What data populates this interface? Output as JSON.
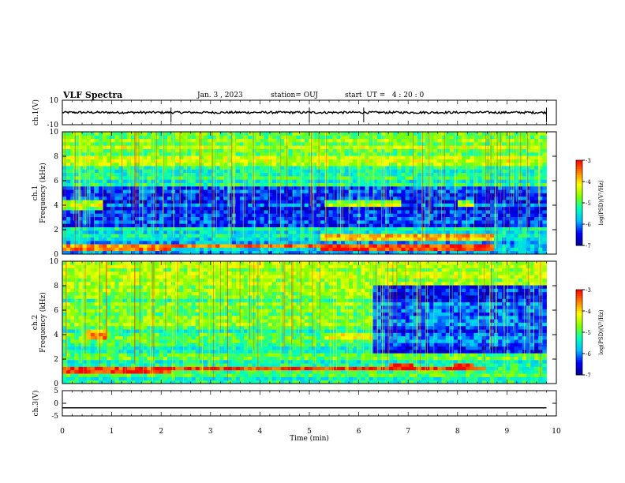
{
  "header": {
    "title": "VLF Spectra",
    "date": "Jan. 3 , 2023",
    "station": "station= OUJ",
    "start": "start  UT =   4 : 20 : 0"
  },
  "colors": {
    "trace": "#000000",
    "colormap": [
      "#00008f",
      "#0000ff",
      "#00bfff",
      "#00ffbf",
      "#7fff00",
      "#ffff00",
      "#ff8000",
      "#ff0000",
      "#ffffff"
    ]
  },
  "chart_data": [
    {
      "type": "line",
      "panel": "ch1-waveform",
      "ylabel": "ch.1(V)",
      "ylim": [
        -10,
        10
      ],
      "yticks": [
        "10",
        "-10"
      ],
      "xlim": [
        0,
        10
      ],
      "series": [
        {
          "x": [
            0,
            9.8
          ],
          "y": [
            0,
            0
          ]
        }
      ],
      "spikes_min": [
        2.2,
        5.0,
        6.1,
        9.8
      ]
    },
    {
      "type": "heatmap",
      "panel": "ch1-spectrogram",
      "ylabel": "ch.1\nFrequency  (kHz)",
      "ylim": [
        0,
        10
      ],
      "yticks": [
        "0",
        "2",
        "4",
        "6",
        "8",
        "10"
      ],
      "xlim": [
        0,
        10
      ],
      "data_end_min": 9.8,
      "colorbar": {
        "label": "log(PSD)(V²/Hz)",
        "range": [
          -7,
          -3
        ],
        "ticks": [
          "-3",
          "-4",
          "-5",
          "-6",
          "-7"
        ]
      },
      "features": [
        {
          "kind": "emission-band",
          "t_range": [
            0,
            0.8
          ],
          "f_range": [
            3.6,
            4.4
          ],
          "level": -4.5
        },
        {
          "kind": "emission-band",
          "t_range": [
            5.3,
            6.9
          ],
          "f_range": [
            3.9,
            4.4
          ],
          "level": -4.6
        },
        {
          "kind": "emission-band",
          "t_range": [
            8.0,
            8.3
          ],
          "f_range": [
            3.9,
            4.4
          ],
          "level": -4.6
        },
        {
          "kind": "emission-band",
          "t_range": [
            0,
            2.2
          ],
          "f_range": [
            0.4,
            0.9
          ],
          "level": -3.5
        },
        {
          "kind": "emission-band",
          "t_range": [
            2.2,
            5.2
          ],
          "f_range": [
            0.5,
            0.8
          ],
          "level": -3.3
        },
        {
          "kind": "emission-band",
          "t_range": [
            5.2,
            8.7
          ],
          "f_range": [
            0.4,
            0.9
          ],
          "level": -3.2
        },
        {
          "kind": "emission-band",
          "t_range": [
            5.2,
            8.7
          ],
          "f_range": [
            1.2,
            1.8
          ],
          "level": -4.0
        }
      ]
    },
    {
      "type": "heatmap",
      "panel": "ch2-spectrogram",
      "ylabel": "ch.2\nFrequency  (kHz)",
      "ylim": [
        0,
        10
      ],
      "yticks": [
        "0",
        "2",
        "4",
        "6",
        "8",
        "10"
      ],
      "xlim": [
        0,
        10
      ],
      "data_end_min": 9.8,
      "colorbar": {
        "label": "log(PSD)(V²/Hz)",
        "range": [
          -7,
          -3
        ],
        "ticks": [
          "-3",
          "-4",
          "-5",
          "-6",
          "-7"
        ]
      },
      "features": [
        {
          "kind": "emission-band",
          "t_range": [
            0.5,
            0.9
          ],
          "f_range": [
            3.6,
            4.4
          ],
          "level": -3.8
        },
        {
          "kind": "emission-band",
          "t_range": [
            5.3,
            6.9
          ],
          "f_range": [
            3.7,
            4.3
          ],
          "level": -4.4
        },
        {
          "kind": "emission-band",
          "t_range": [
            0,
            2.2
          ],
          "f_range": [
            0.9,
            1.5
          ],
          "level": -3.3
        },
        {
          "kind": "emission-band",
          "t_range": [
            2.2,
            8.6
          ],
          "f_range": [
            1.0,
            1.4
          ],
          "level": -3.2
        },
        {
          "kind": "emission-band",
          "t_range": [
            6.6,
            7.1
          ],
          "f_range": [
            1.0,
            1.6
          ],
          "level": -3.0
        },
        {
          "kind": "emission-band",
          "t_range": [
            7.9,
            8.3
          ],
          "f_range": [
            1.0,
            1.6
          ],
          "level": -3.0
        },
        {
          "kind": "quiet-region",
          "t_range": [
            6.3,
            9.8
          ],
          "f_range": [
            2.5,
            8.0
          ],
          "level": -6.2
        }
      ]
    },
    {
      "type": "line",
      "panel": "ch3-waveform",
      "ylabel": "ch.3(V)",
      "ylim": [
        -5,
        5
      ],
      "yticks": [
        "5",
        "0",
        "-5"
      ],
      "xlim": [
        0,
        10
      ],
      "series": [
        {
          "x": [
            0,
            9.8
          ],
          "y": [
            -1.8,
            -1.8
          ]
        }
      ]
    }
  ],
  "xaxis": {
    "label": "Time  (min)",
    "ticks": [
      "0",
      "1",
      "2",
      "3",
      "4",
      "5",
      "6",
      "7",
      "8",
      "9",
      "10"
    ]
  }
}
